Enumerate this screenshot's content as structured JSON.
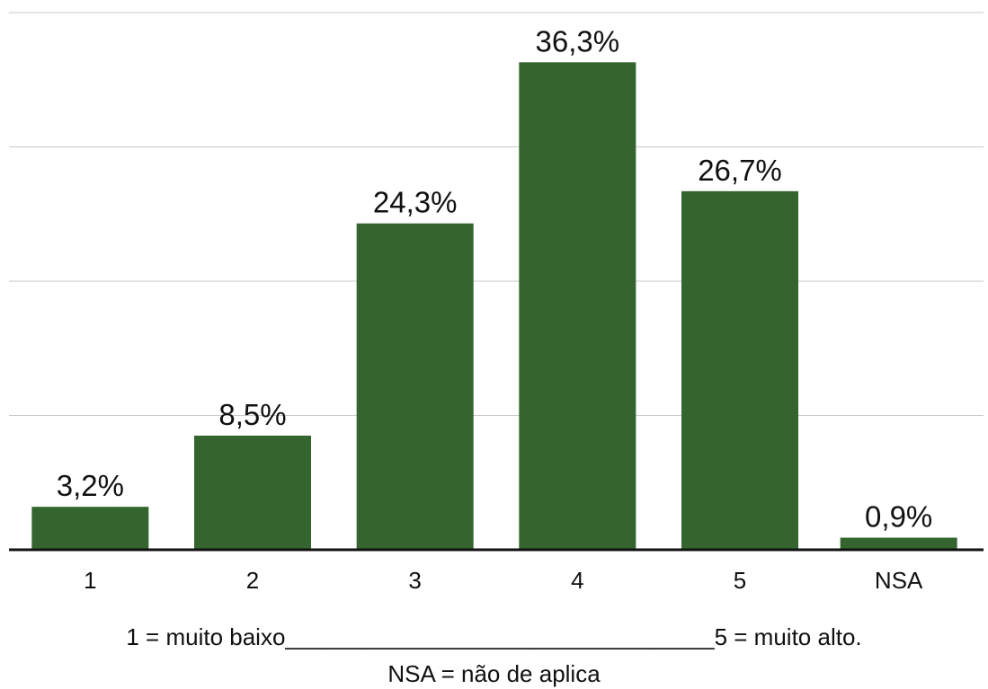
{
  "chart_data": {
    "type": "bar",
    "categories": [
      "1",
      "2",
      "3",
      "4",
      "5",
      "NSA"
    ],
    "values": [
      3.2,
      8.5,
      24.3,
      36.3,
      26.7,
      0.9
    ],
    "value_labels": [
      "3,2%",
      "8,5%",
      "24,3%",
      "36,3%",
      "26,7%",
      "0,9%"
    ],
    "title": "",
    "xlabel": "",
    "ylabel": "",
    "ylim": [
      0,
      40
    ],
    "grid": true,
    "legend": "none",
    "bar_color": "#35652f"
  },
  "notes": {
    "scale": "1 = muito baixo_________________________________5 = muito alto.",
    "nsa": "NSA = não de aplica"
  }
}
